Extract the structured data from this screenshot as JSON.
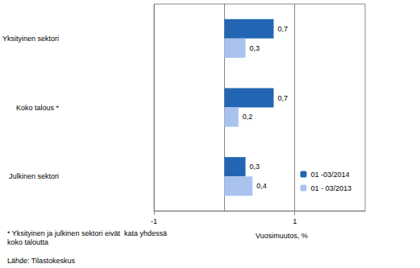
{
  "chart_data": {
    "type": "bar",
    "orientation": "horizontal",
    "categories": [
      "Yksityinen sektori",
      "Koko talous *",
      "Julkinen sektori"
    ],
    "series": [
      {
        "name": "01 -03/2014",
        "color": "#2266b3",
        "values": [
          0.7,
          0.7,
          0.3
        ],
        "value_labels": [
          "0,7",
          "0,7",
          "0,3"
        ]
      },
      {
        "name": "01 - 03/2013",
        "color": "#a9c3ee",
        "values": [
          0.3,
          0.2,
          0.4
        ],
        "value_labels": [
          "0,3",
          "0,2",
          "0,4"
        ]
      }
    ],
    "xlim": [
      -1,
      2
    ],
    "xticks": [
      -1,
      1
    ],
    "x_label": "Vuosimuutos, %",
    "footnote": "* Yksityinen ja julkinen sektori eivät  kata yhdessä\nkoko taloutta",
    "source": "Lähde: Tilastokeskus",
    "data_labels": true,
    "grid": true,
    "legend": "lower right"
  }
}
